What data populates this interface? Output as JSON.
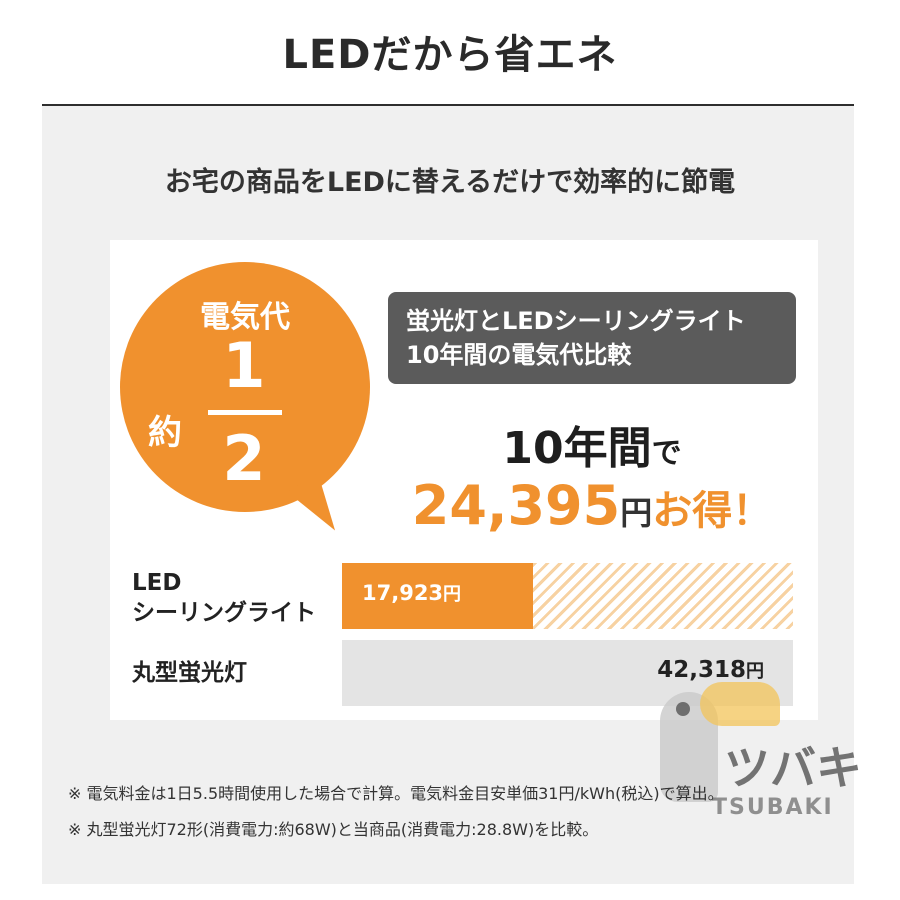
{
  "header": {
    "title": "LEDだから省エネ",
    "subtitle": "お宅の商品をLEDに替えるだけで効率的に節電"
  },
  "badge": {
    "label": "電気代",
    "approx": "約",
    "numerator": "1",
    "denominator": "2"
  },
  "comparison_box": {
    "line1": "蛍光灯とLEDシーリングライト",
    "line2": "10年間の電気代比較"
  },
  "savings": {
    "period_num": "10",
    "period_unit": "年間",
    "period_particle": "で",
    "amount": "24,395",
    "yen": "円",
    "suffix": "お得！"
  },
  "bars": {
    "led": {
      "label_line1": "LED",
      "label_line2": "シーリングライト",
      "value_text": "17,923",
      "yen": "円",
      "value": 17923
    },
    "fluorescent": {
      "label": "丸型蛍光灯",
      "value_text": "42,318",
      "yen": "円",
      "value": 42318
    }
  },
  "notes": [
    "※ 電気料金は1日5.5時間使用した場合で計算。電気料金目安単価31円/kWh(税込)で算出。",
    "※ 丸型蛍光灯72形(消費電力:約68W)と当商品(消費電力:28.8W)を比較。"
  ],
  "watermark": {
    "text": "ツバキ",
    "sub": "TSUBAKI"
  },
  "colors": {
    "accent": "#f0912e",
    "dark_box": "#5b5b5b",
    "panel_bg": "#f0f0f0"
  }
}
